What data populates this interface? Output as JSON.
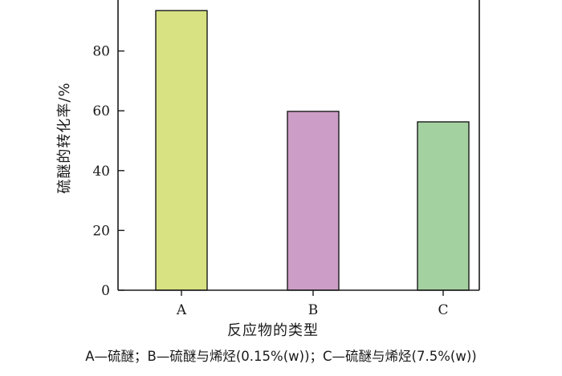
{
  "chart_data": {
    "type": "bar",
    "categories": [
      "A",
      "B",
      "C"
    ],
    "values": [
      93.5,
      59.8,
      56.3
    ],
    "colors": [
      "#d8e282",
      "#cc9dc6",
      "#a4d1a0"
    ],
    "xlabel": "反应物的类型",
    "ylabel": "硫醚的转化率/%",
    "ylim": [
      0,
      95
    ],
    "yticks": [
      0,
      20,
      40,
      60,
      80
    ],
    "grid": false
  },
  "caption": "A—硫醚；B—硫醚与烯烃(0.15%(w))；C—硫醚与烯烃(7.5%(w))"
}
